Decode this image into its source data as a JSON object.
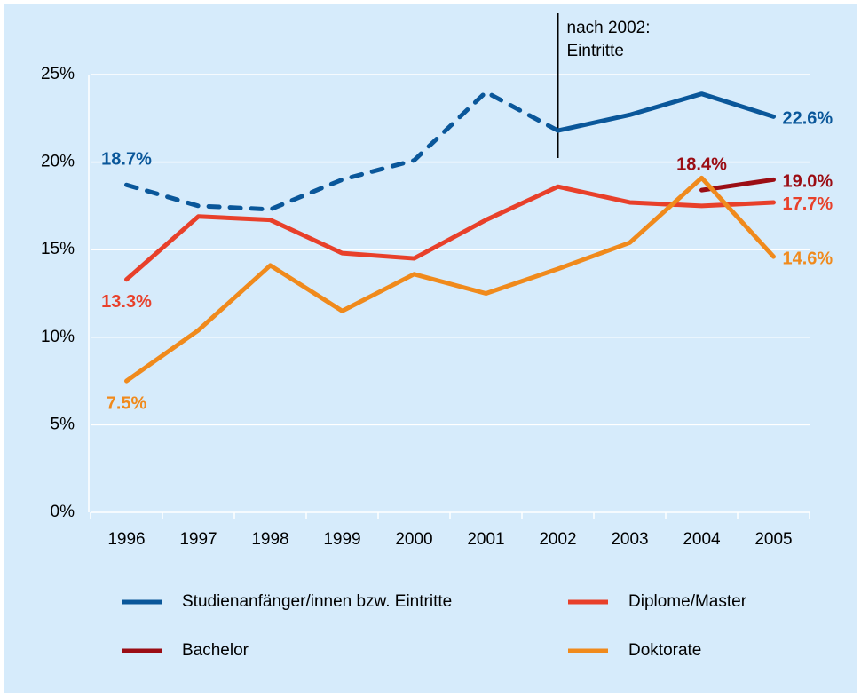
{
  "chart_data": {
    "type": "line",
    "categories": [
      "1996",
      "1997",
      "1998",
      "1999",
      "2000",
      "2001",
      "2002",
      "2003",
      "2004",
      "2005"
    ],
    "ylim": [
      0,
      25
    ],
    "yticks": [
      {
        "value": 0,
        "label": "0%"
      },
      {
        "value": 5,
        "label": "5%"
      },
      {
        "value": 10,
        "label": "10%"
      },
      {
        "value": 15,
        "label": "15%"
      },
      {
        "value": 20,
        "label": "20%"
      },
      {
        "value": 25,
        "label": "25%"
      }
    ],
    "grid": true,
    "annotation": {
      "category": "2002",
      "lines": [
        "nach 2002:",
        "Eintritte"
      ]
    },
    "series": [
      {
        "name": "Studienanfänger/innen bzw. Eintritte",
        "color": "#0a579a",
        "values": [
          18.7,
          17.5,
          17.3,
          19.0,
          20.1,
          24.0,
          21.8,
          22.7,
          23.9,
          22.6
        ],
        "segment_styles": [
          "dashed",
          "dashed",
          "dashed",
          "dashed",
          "dashed",
          "dashed",
          "solid",
          "solid",
          "solid"
        ],
        "value_labels": [
          "18.7%",
          null,
          null,
          null,
          null,
          null,
          null,
          null,
          null,
          "22.6%"
        ]
      },
      {
        "name": "Diplome/Master",
        "color": "#e8402a",
        "values": [
          13.3,
          16.9,
          16.7,
          14.8,
          14.5,
          16.7,
          18.6,
          17.7,
          17.5,
          17.7
        ],
        "value_labels": [
          "13.3%",
          null,
          null,
          null,
          null,
          null,
          null,
          null,
          null,
          "17.7%"
        ]
      },
      {
        "name": "Bachelor",
        "color": "#9b0d14",
        "values": [
          null,
          null,
          null,
          null,
          null,
          null,
          null,
          null,
          18.4,
          19.0
        ],
        "value_labels": [
          null,
          null,
          null,
          null,
          null,
          null,
          null,
          null,
          "18.4%",
          "19.0%"
        ]
      },
      {
        "name": "Doktorate",
        "color": "#f08a1c",
        "values": [
          7.5,
          10.4,
          14.1,
          11.5,
          13.6,
          12.5,
          13.9,
          15.4,
          19.1,
          14.6
        ],
        "value_labels": [
          "7.5%",
          null,
          null,
          null,
          null,
          null,
          null,
          null,
          null,
          "14.6%"
        ]
      }
    ]
  }
}
